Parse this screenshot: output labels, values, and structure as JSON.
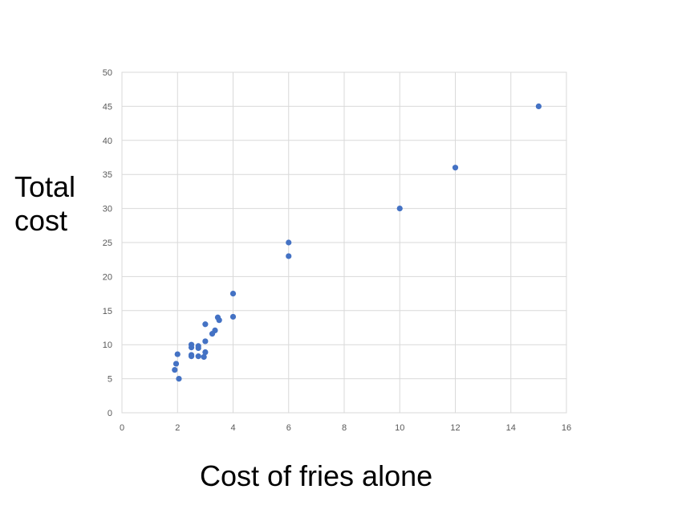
{
  "chart_data": {
    "type": "scatter",
    "title": "",
    "xlabel": "Cost of fries alone",
    "ylabel": "Total cost",
    "xlim": [
      0,
      16
    ],
    "ylim": [
      0,
      50
    ],
    "x_ticks": [
      0,
      2,
      4,
      6,
      8,
      10,
      12,
      14,
      16
    ],
    "y_ticks": [
      0,
      5,
      10,
      15,
      20,
      25,
      30,
      35,
      40,
      45,
      50
    ],
    "grid": true,
    "marker_color": "#4472c4",
    "grid_color": "#d9d9d9",
    "series": [
      {
        "points": [
          {
            "x": 1.9,
            "y": 6.3
          },
          {
            "x": 1.95,
            "y": 7.2
          },
          {
            "x": 2.0,
            "y": 8.6
          },
          {
            "x": 2.05,
            "y": 5.0
          },
          {
            "x": 2.5,
            "y": 10.0
          },
          {
            "x": 2.5,
            "y": 9.6
          },
          {
            "x": 2.5,
            "y": 8.5
          },
          {
            "x": 2.5,
            "y": 8.3
          },
          {
            "x": 2.75,
            "y": 9.8
          },
          {
            "x": 2.75,
            "y": 9.5
          },
          {
            "x": 2.75,
            "y": 8.3
          },
          {
            "x": 3.0,
            "y": 13.0
          },
          {
            "x": 3.0,
            "y": 10.5
          },
          {
            "x": 3.0,
            "y": 8.9
          },
          {
            "x": 2.95,
            "y": 8.2
          },
          {
            "x": 3.25,
            "y": 11.6
          },
          {
            "x": 3.35,
            "y": 12.1
          },
          {
            "x": 3.45,
            "y": 14.0
          },
          {
            "x": 3.5,
            "y": 13.6
          },
          {
            "x": 4.0,
            "y": 17.5
          },
          {
            "x": 4.0,
            "y": 14.1
          },
          {
            "x": 6.0,
            "y": 25.0
          },
          {
            "x": 6.0,
            "y": 23.0
          },
          {
            "x": 10.0,
            "y": 30.0
          },
          {
            "x": 12.0,
            "y": 36.0
          },
          {
            "x": 15.0,
            "y": 45.0
          }
        ]
      }
    ]
  }
}
